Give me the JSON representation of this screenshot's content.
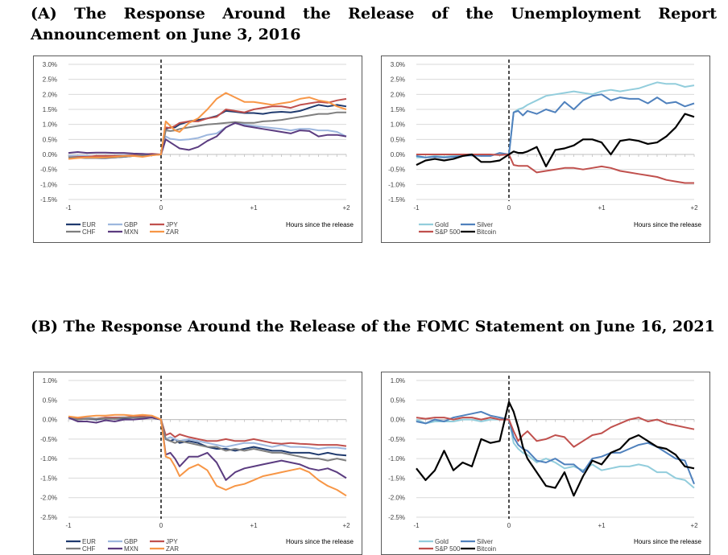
{
  "section_a": {
    "title": "(A) The Response Around the Release of the Unemployment Report Announcement on June 3, 2016"
  },
  "section_b": {
    "title": "(B) The Response Around the Release of the FOMC Statement on June 16, 2021"
  },
  "chart_data": [
    {
      "id": "a-currencies",
      "type": "line",
      "xlabel": "Hours since the release",
      "ylim": [
        -1.5,
        3.0
      ],
      "yticks": [
        "3.0%",
        "2.5%",
        "2.0%",
        "1.5%",
        "1.0%",
        "0.5%",
        "0.0%",
        "-0.5%",
        "-1.0%",
        "-1.5%"
      ],
      "xticks": [
        "-1",
        "0",
        "+1",
        "+2"
      ],
      "event_x": 0,
      "legend_layout": [
        [
          "EUR",
          "GBP",
          "JPY"
        ],
        [
          "CHF",
          "MXN",
          "ZAR"
        ]
      ],
      "x": [
        -1,
        -0.9,
        -0.8,
        -0.7,
        -0.6,
        -0.5,
        -0.4,
        -0.3,
        -0.2,
        -0.1,
        0,
        0.05,
        0.1,
        0.15,
        0.2,
        0.3,
        0.4,
        0.5,
        0.6,
        0.7,
        0.8,
        0.9,
        1.0,
        1.1,
        1.2,
        1.3,
        1.4,
        1.5,
        1.6,
        1.7,
        1.8,
        1.9,
        2.0
      ],
      "series": [
        {
          "name": "EUR",
          "color": "#1f3a6e",
          "values": [
            -0.1,
            -0.1,
            -0.12,
            -0.12,
            -0.12,
            -0.1,
            -0.08,
            -0.05,
            -0.03,
            -0.02,
            0.0,
            0.85,
            0.9,
            0.9,
            1.0,
            1.1,
            1.15,
            1.2,
            1.28,
            1.45,
            1.42,
            1.38,
            1.38,
            1.35,
            1.4,
            1.42,
            1.4,
            1.45,
            1.55,
            1.65,
            1.6,
            1.65,
            1.6
          ]
        },
        {
          "name": "GBP",
          "color": "#9db7de",
          "values": [
            -0.05,
            -0.05,
            -0.05,
            -0.08,
            -0.05,
            -0.05,
            -0.03,
            -0.02,
            0.0,
            0.0,
            0.0,
            0.6,
            0.52,
            0.5,
            0.48,
            0.5,
            0.55,
            0.65,
            0.7,
            0.9,
            1.05,
            1.0,
            0.95,
            0.92,
            0.88,
            0.85,
            0.8,
            0.85,
            0.85,
            0.8,
            0.8,
            0.75,
            0.6
          ]
        },
        {
          "name": "JPY",
          "color": "#c0504d",
          "values": [
            -0.1,
            -0.08,
            -0.08,
            -0.05,
            -0.05,
            -0.05,
            -0.05,
            -0.03,
            0.0,
            0.02,
            0.0,
            0.9,
            0.88,
            0.95,
            1.05,
            1.1,
            1.1,
            1.2,
            1.25,
            1.5,
            1.45,
            1.4,
            1.5,
            1.55,
            1.6,
            1.6,
            1.55,
            1.65,
            1.7,
            1.75,
            1.72,
            1.8,
            1.85
          ]
        },
        {
          "name": "CHF",
          "color": "#7f7f7f",
          "values": [
            -0.1,
            -0.1,
            -0.12,
            -0.12,
            -0.1,
            -0.1,
            -0.08,
            -0.05,
            -0.03,
            -0.02,
            0.0,
            0.8,
            0.78,
            0.8,
            0.85,
            0.9,
            0.95,
            1.0,
            1.02,
            1.05,
            1.08,
            1.05,
            1.05,
            1.1,
            1.12,
            1.15,
            1.2,
            1.25,
            1.3,
            1.35,
            1.35,
            1.4,
            1.4
          ]
        },
        {
          "name": "MXN",
          "color": "#5b3c80",
          "values": [
            0.05,
            0.08,
            0.05,
            0.06,
            0.06,
            0.05,
            0.05,
            0.03,
            0.02,
            0.0,
            0.0,
            0.5,
            0.4,
            0.3,
            0.2,
            0.15,
            0.25,
            0.45,
            0.6,
            0.9,
            1.05,
            0.95,
            0.9,
            0.85,
            0.8,
            0.75,
            0.7,
            0.8,
            0.78,
            0.6,
            0.65,
            0.65,
            0.6
          ]
        },
        {
          "name": "ZAR",
          "color": "#f79646",
          "values": [
            -0.15,
            -0.12,
            -0.1,
            -0.1,
            -0.1,
            -0.08,
            -0.05,
            -0.05,
            -0.08,
            -0.03,
            0.0,
            1.1,
            0.95,
            0.8,
            0.75,
            1.05,
            1.2,
            1.5,
            1.85,
            2.05,
            1.9,
            1.75,
            1.75,
            1.7,
            1.65,
            1.7,
            1.75,
            1.85,
            1.9,
            1.8,
            1.75,
            1.6,
            1.5
          ]
        }
      ]
    },
    {
      "id": "a-assets",
      "type": "line",
      "xlabel": "Hours since the release",
      "ylim": [
        -1.5,
        3.0
      ],
      "yticks": [
        "3.0%",
        "2.5%",
        "2.0%",
        "1.5%",
        "1.0%",
        "0.5%",
        "0.0%",
        "-0.5%",
        "-1.0%",
        "-1.5%"
      ],
      "xticks": [
        "-1",
        "0",
        "+1",
        "+2"
      ],
      "event_x": 0,
      "legend_layout": [
        [
          "Gold",
          "Silver"
        ],
        [
          "S&P 500",
          "Bitcoin"
        ]
      ],
      "x": [
        -1,
        -0.9,
        -0.8,
        -0.7,
        -0.6,
        -0.5,
        -0.4,
        -0.3,
        -0.2,
        -0.1,
        0,
        0.05,
        0.1,
        0.15,
        0.2,
        0.3,
        0.4,
        0.5,
        0.6,
        0.7,
        0.8,
        0.9,
        1.0,
        1.1,
        1.2,
        1.3,
        1.4,
        1.5,
        1.6,
        1.7,
        1.8,
        1.9,
        2.0
      ],
      "series": [
        {
          "name": "Gold",
          "color": "#92cddc",
          "values": [
            -0.1,
            -0.1,
            -0.05,
            -0.08,
            -0.05,
            -0.02,
            0.0,
            -0.03,
            -0.02,
            0.0,
            0.0,
            1.4,
            1.5,
            1.55,
            1.65,
            1.8,
            1.95,
            2.0,
            2.05,
            2.1,
            2.05,
            2.0,
            2.1,
            2.15,
            2.1,
            2.15,
            2.2,
            2.3,
            2.4,
            2.35,
            2.35,
            2.25,
            2.3
          ]
        },
        {
          "name": "Silver",
          "color": "#4f81bd",
          "values": [
            -0.05,
            -0.1,
            -0.08,
            -0.1,
            -0.08,
            -0.05,
            -0.03,
            -0.05,
            -0.05,
            0.05,
            0.0,
            1.4,
            1.45,
            1.3,
            1.45,
            1.35,
            1.5,
            1.4,
            1.75,
            1.5,
            1.8,
            1.95,
            2.0,
            1.8,
            1.9,
            1.85,
            1.85,
            1.7,
            1.9,
            1.7,
            1.75,
            1.6,
            1.7
          ]
        },
        {
          "name": "S&P 500",
          "color": "#c0504d",
          "values": [
            0.0,
            0.0,
            0.0,
            0.0,
            0.0,
            0.0,
            0.0,
            0.0,
            0.0,
            -0.02,
            0.0,
            -0.35,
            -0.38,
            -0.38,
            -0.38,
            -0.6,
            -0.55,
            -0.5,
            -0.45,
            -0.45,
            -0.5,
            -0.45,
            -0.4,
            -0.45,
            -0.55,
            -0.6,
            -0.65,
            -0.7,
            -0.75,
            -0.85,
            -0.9,
            -0.95,
            -0.95
          ]
        },
        {
          "name": "Bitcoin",
          "color": "#000000",
          "values": [
            -0.35,
            -0.2,
            -0.15,
            -0.2,
            -0.15,
            -0.05,
            0.0,
            -0.25,
            -0.25,
            -0.2,
            0.0,
            0.1,
            0.05,
            0.05,
            0.1,
            0.25,
            -0.4,
            0.15,
            0.2,
            0.3,
            0.5,
            0.5,
            0.4,
            0.0,
            0.45,
            0.5,
            0.45,
            0.35,
            0.4,
            0.6,
            0.9,
            1.35,
            1.25
          ]
        }
      ]
    },
    {
      "id": "b-currencies",
      "type": "line",
      "xlabel": "Hours since the release",
      "ylim": [
        -2.5,
        1.0
      ],
      "yticks": [
        "1.0%",
        "0.5%",
        "0.0%",
        "-0.5%",
        "-1.0%",
        "-1.5%",
        "-2.0%",
        "-2.5%"
      ],
      "xticks": [
        "-1",
        "0",
        "+1",
        "+2"
      ],
      "event_x": 0,
      "legend_layout": [
        [
          "EUR",
          "GBP",
          "JPY"
        ],
        [
          "CHF",
          "MXN",
          "ZAR"
        ]
      ],
      "x": [
        -1,
        -0.9,
        -0.8,
        -0.7,
        -0.6,
        -0.5,
        -0.4,
        -0.3,
        -0.2,
        -0.1,
        0,
        0.05,
        0.1,
        0.15,
        0.2,
        0.3,
        0.4,
        0.5,
        0.6,
        0.7,
        0.8,
        0.9,
        1.0,
        1.1,
        1.2,
        1.3,
        1.4,
        1.5,
        1.6,
        1.7,
        1.8,
        1.9,
        2.0
      ],
      "series": [
        {
          "name": "EUR",
          "color": "#1f3a6e",
          "values": [
            0.05,
            0.0,
            0.02,
            0.0,
            0.03,
            0.02,
            0.03,
            0.05,
            0.05,
            0.05,
            0.0,
            -0.5,
            -0.55,
            -0.5,
            -0.6,
            -0.55,
            -0.6,
            -0.7,
            -0.75,
            -0.75,
            -0.8,
            -0.75,
            -0.7,
            -0.75,
            -0.8,
            -0.8,
            -0.85,
            -0.85,
            -0.85,
            -0.9,
            -0.85,
            -0.9,
            -0.92
          ]
        },
        {
          "name": "GBP",
          "color": "#9db7de",
          "values": [
            0.05,
            0.02,
            0.05,
            0.02,
            0.05,
            0.05,
            0.06,
            0.05,
            0.08,
            0.08,
            0.0,
            -0.5,
            -0.45,
            -0.5,
            -0.55,
            -0.5,
            -0.55,
            -0.6,
            -0.65,
            -0.7,
            -0.65,
            -0.6,
            -0.6,
            -0.65,
            -0.7,
            -0.65,
            -0.7,
            -0.7,
            -0.72,
            -0.75,
            -0.72,
            -0.72,
            -0.75
          ]
        },
        {
          "name": "JPY",
          "color": "#c0504d",
          "values": [
            0.05,
            0.02,
            0.02,
            0.02,
            0.05,
            0.05,
            0.05,
            0.08,
            0.08,
            0.05,
            0.0,
            -0.4,
            -0.35,
            -0.45,
            -0.38,
            -0.45,
            -0.5,
            -0.55,
            -0.55,
            -0.5,
            -0.55,
            -0.55,
            -0.5,
            -0.55,
            -0.6,
            -0.62,
            -0.6,
            -0.62,
            -0.63,
            -0.65,
            -0.65,
            -0.65,
            -0.68
          ]
        },
        {
          "name": "CHF",
          "color": "#7f7f7f",
          "values": [
            0.05,
            0.0,
            0.02,
            0.02,
            0.03,
            0.02,
            0.05,
            0.05,
            0.05,
            0.05,
            0.0,
            -0.5,
            -0.55,
            -0.6,
            -0.55,
            -0.6,
            -0.65,
            -0.7,
            -0.7,
            -0.8,
            -0.75,
            -0.8,
            -0.75,
            -0.8,
            -0.85,
            -0.85,
            -0.9,
            -0.95,
            -1.0,
            -1.0,
            -1.05,
            -1.0,
            -1.05
          ]
        },
        {
          "name": "MXN",
          "color": "#5b3c80",
          "values": [
            0.05,
            -0.05,
            -0.05,
            -0.08,
            -0.02,
            -0.05,
            0.0,
            0.0,
            0.02,
            0.05,
            0.0,
            -0.9,
            -0.85,
            -1.0,
            -1.2,
            -0.95,
            -0.95,
            -0.85,
            -1.1,
            -1.55,
            -1.35,
            -1.25,
            -1.2,
            -1.15,
            -1.1,
            -1.05,
            -1.1,
            -1.15,
            -1.25,
            -1.3,
            -1.25,
            -1.35,
            -1.5
          ]
        },
        {
          "name": "ZAR",
          "color": "#f79646",
          "values": [
            0.08,
            0.05,
            0.08,
            0.1,
            0.1,
            0.12,
            0.12,
            0.1,
            0.12,
            0.1,
            0.0,
            -0.95,
            -1.0,
            -1.2,
            -1.45,
            -1.25,
            -1.15,
            -1.3,
            -1.7,
            -1.8,
            -1.7,
            -1.65,
            -1.55,
            -1.45,
            -1.4,
            -1.35,
            -1.3,
            -1.25,
            -1.35,
            -1.55,
            -1.7,
            -1.8,
            -1.95
          ]
        }
      ]
    },
    {
      "id": "b-assets",
      "type": "line",
      "xlabel": "Hours since the release",
      "ylim": [
        -2.5,
        1.0
      ],
      "yticks": [
        "1.0%",
        "0.5%",
        "0.0%",
        "-0.5%",
        "-1.0%",
        "-1.5%",
        "-2.0%",
        "-2.5%"
      ],
      "xticks": [
        "-1",
        "0",
        "+1",
        "+2"
      ],
      "event_x": 0,
      "legend_layout": [
        [
          "Gold",
          "Silver"
        ],
        [
          "S&P 500",
          "Bitcoin"
        ]
      ],
      "x": [
        -1,
        -0.9,
        -0.8,
        -0.7,
        -0.6,
        -0.5,
        -0.4,
        -0.3,
        -0.2,
        -0.1,
        0,
        0.05,
        0.1,
        0.15,
        0.2,
        0.3,
        0.4,
        0.5,
        0.6,
        0.7,
        0.8,
        0.9,
        1.0,
        1.1,
        1.2,
        1.3,
        1.4,
        1.5,
        1.6,
        1.7,
        1.8,
        1.9,
        2.0
      ],
      "series": [
        {
          "name": "Gold",
          "color": "#92cddc",
          "values": [
            0.0,
            -0.1,
            -0.05,
            -0.05,
            -0.05,
            0.0,
            0.0,
            -0.05,
            0.0,
            0.0,
            0.0,
            -0.6,
            -0.75,
            -0.85,
            -0.9,
            -1.1,
            -1.0,
            -1.1,
            -1.25,
            -1.2,
            -1.3,
            -1.15,
            -1.3,
            -1.25,
            -1.2,
            -1.2,
            -1.15,
            -1.2,
            -1.35,
            -1.35,
            -1.5,
            -1.55,
            -1.75
          ]
        },
        {
          "name": "Silver",
          "color": "#4f81bd",
          "values": [
            -0.05,
            -0.1,
            0.0,
            -0.05,
            0.05,
            0.1,
            0.15,
            0.2,
            0.1,
            0.05,
            0.0,
            -0.45,
            -0.65,
            -0.75,
            -0.8,
            -1.05,
            -1.1,
            -1.0,
            -1.15,
            -1.15,
            -1.35,
            -1.0,
            -0.95,
            -0.85,
            -0.85,
            -0.75,
            -0.65,
            -0.6,
            -0.7,
            -0.85,
            -1.0,
            -1.05,
            -1.65
          ]
        },
        {
          "name": "S&P 500",
          "color": "#c0504d",
          "values": [
            0.05,
            0.02,
            0.05,
            0.05,
            0.0,
            0.05,
            0.05,
            0.0,
            0.05,
            0.0,
            0.0,
            -0.3,
            -0.55,
            -0.4,
            -0.3,
            -0.55,
            -0.5,
            -0.4,
            -0.45,
            -0.7,
            -0.55,
            -0.4,
            -0.35,
            -0.2,
            -0.1,
            0.0,
            0.05,
            -0.05,
            0.0,
            -0.1,
            -0.15,
            -0.2,
            -0.25
          ]
        },
        {
          "name": "Bitcoin",
          "color": "#000000",
          "values": [
            -1.25,
            -1.55,
            -1.3,
            -0.8,
            -1.3,
            -1.1,
            -1.2,
            -0.5,
            -0.6,
            -0.55,
            0.45,
            0.2,
            -0.2,
            -0.7,
            -1.0,
            -1.35,
            -1.7,
            -1.75,
            -1.35,
            -1.95,
            -1.45,
            -1.05,
            -1.15,
            -0.85,
            -0.75,
            -0.5,
            -0.4,
            -0.55,
            -0.7,
            -0.75,
            -0.9,
            -1.2,
            -1.25
          ]
        }
      ]
    }
  ]
}
